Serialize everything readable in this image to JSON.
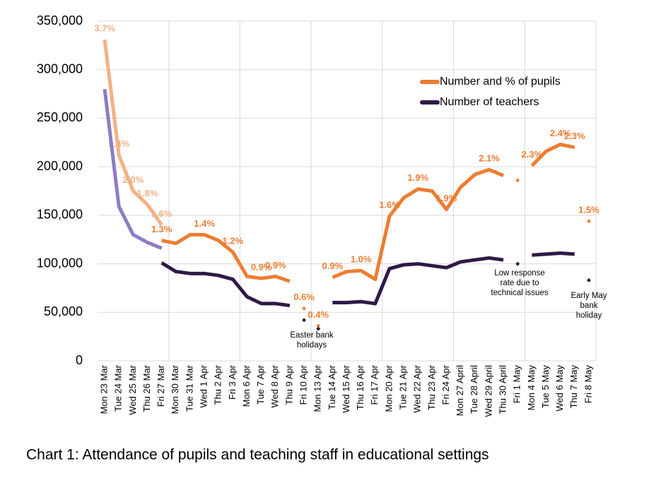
{
  "chart_data": {
    "type": "line",
    "caption": "Chart 1: Attendance of pupils and teaching staff in educational settings",
    "categories": [
      "Mon 23 Mar",
      "Tue 24 Mar",
      "Wed 25 Mar",
      "Thu 26 Mar",
      "Fri 27 Mar",
      "Mon 30 Mar",
      "Tue 31 Mar",
      "Wed 1 Apr",
      "Thu 2 Apr",
      "Fri 3 Apr",
      "Mon 6 Apr",
      "Tue 7 Apr",
      "Wed 8 Apr",
      "Thu 9 Apr",
      "Fri 10 Apr",
      "Mon 13 Apr",
      "Tue 14 Apr",
      "Wed 15 Apr",
      "Thu 16 Apr",
      "Fri 17 Apr",
      "Mon 20 Apr",
      "Tue 21 Apr",
      "Wed 22 Apr",
      "Thu 23 Apr",
      "Fri 24 Apr",
      "Mon 27 April",
      "Tue 28 April",
      "Wed 29 April",
      "Thu 30 April",
      "Fri 1 May",
      "Mon 4 May",
      "Tue 5 May",
      "Wed 6 May",
      "Thu 7 May",
      "Fri 8 May"
    ],
    "series": [
      {
        "color": "#f4b183",
        "values": [
          331000,
          212000,
          175000,
          161000,
          140000,
          null,
          null,
          null,
          null,
          null,
          null,
          null,
          null,
          null,
          null,
          null,
          null,
          null,
          null,
          null,
          null,
          null,
          null,
          null,
          null,
          null,
          null,
          null,
          null,
          null,
          null,
          null,
          null,
          null,
          null
        ],
        "percent_labels": [
          "3.7%",
          "2.4%",
          "2.0%",
          "1.8%",
          "1.6%",
          null,
          null,
          null,
          null,
          null,
          null,
          null,
          null,
          null,
          null,
          null,
          null,
          null,
          null,
          null,
          null,
          null,
          null,
          null,
          null,
          null,
          null,
          null,
          null,
          null,
          null,
          null,
          null,
          null,
          null
        ]
      },
      {
        "name": "Number and % of pupils",
        "color": "#ed7d31",
        "values": [
          null,
          null,
          null,
          null,
          124000,
          121000,
          130000,
          130000,
          124000,
          112000,
          87000,
          85000,
          87000,
          82000,
          null,
          null,
          86000,
          92000,
          93000,
          84000,
          149000,
          168000,
          177000,
          175000,
          156000,
          179000,
          192000,
          197000,
          191000,
          null,
          201000,
          216000,
          223000,
          220000,
          null
        ],
        "percent_labels": [
          null,
          null,
          null,
          null,
          "1.3%",
          null,
          null,
          "1.4%",
          null,
          "1.2%",
          null,
          "0.9%",
          "0.9%",
          null,
          null,
          null,
          "0.9%",
          null,
          "1.0%",
          null,
          "1.6%",
          null,
          "1.9%",
          null,
          "1.9%",
          null,
          null,
          "2.1%",
          null,
          null,
          "2.3%",
          null,
          "2.4%",
          "2.3%",
          null
        ]
      },
      {
        "color": "#ed7d31",
        "markers": true,
        "values": [
          null,
          null,
          null,
          null,
          null,
          null,
          null,
          null,
          null,
          null,
          null,
          null,
          null,
          null,
          54000,
          36000,
          null,
          null,
          null,
          null,
          null,
          null,
          null,
          null,
          null,
          null,
          null,
          null,
          null,
          186000,
          null,
          null,
          null,
          null,
          144000
        ],
        "percent_labels": [
          null,
          null,
          null,
          null,
          null,
          null,
          null,
          null,
          null,
          null,
          null,
          null,
          null,
          null,
          "0.6%",
          "0.4%",
          null,
          null,
          null,
          null,
          null,
          null,
          null,
          null,
          null,
          null,
          null,
          null,
          null,
          null,
          null,
          null,
          null,
          null,
          "1.5%"
        ]
      },
      {
        "color": "#8e7cc3",
        "values": [
          280000,
          159000,
          130000,
          122000,
          116000,
          null,
          null,
          null,
          null,
          null,
          null,
          null,
          null,
          null,
          null,
          null,
          null,
          null,
          null,
          null,
          null,
          null,
          null,
          null,
          null,
          null,
          null,
          null,
          null,
          null,
          null,
          null,
          null,
          null,
          null
        ]
      },
      {
        "name": "Number of teachers",
        "color": "#2e1a47",
        "values": [
          null,
          null,
          null,
          null,
          101000,
          92000,
          90000,
          90000,
          88000,
          84000,
          66000,
          59000,
          59000,
          57000,
          null,
          null,
          60000,
          60000,
          61000,
          59000,
          95000,
          99000,
          100000,
          98000,
          96000,
          102000,
          104000,
          106000,
          104000,
          null,
          109000,
          110000,
          111000,
          110000,
          null
        ]
      },
      {
        "color": "#2e1a47",
        "markers": true,
        "values": [
          null,
          null,
          null,
          null,
          null,
          null,
          null,
          null,
          null,
          null,
          null,
          null,
          null,
          null,
          42000,
          33000,
          null,
          null,
          null,
          null,
          null,
          null,
          null,
          null,
          null,
          null,
          null,
          null,
          null,
          100000,
          null,
          null,
          null,
          null,
          83000
        ]
      }
    ],
    "annotations": [
      {
        "lines": [
          "Easter bank",
          "holidays"
        ]
      },
      {
        "lines": [
          "Low response",
          "rate due to",
          "technical issues"
        ]
      },
      {
        "lines": [
          "Early May",
          "bank",
          "holiday"
        ]
      }
    ],
    "ylim": [
      0,
      350000
    ],
    "yticks": [
      0,
      {
        "value": 50000,
        "label": "50,000"
      },
      {
        "value": 100000,
        "label": "100,000"
      },
      {
        "value": 150000,
        "label": "150,000"
      },
      {
        "value": 200000,
        "label": "200,000"
      },
      {
        "value": 250000,
        "label": "250,000"
      },
      {
        "value": 300000,
        "label": "300,000"
      },
      {
        "value": 350000,
        "label": "350,000"
      }
    ],
    "grid": true,
    "legend": "upper right"
  }
}
